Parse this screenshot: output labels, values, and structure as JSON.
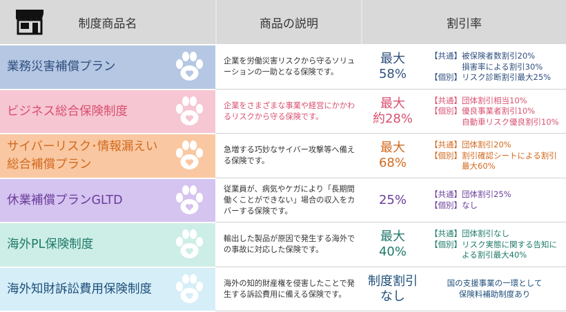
{
  "header": {
    "col_name": "制度商品名",
    "col_desc": "商品の説明",
    "col_discount": "割引率",
    "icon": "shop-icon"
  },
  "rows": [
    {
      "name": "業務災害補償プラン",
      "desc": "企業を労働災害リスクから守るソリューションの一助となる保険です。",
      "rate_line1": "最大",
      "rate_line2": "58%",
      "discount": "【共通】被保険者数割引20%\n　　　　損害率による割引30%\n【個別】リスク診断割引最大25%",
      "color_name_bg": "#b5c7e3",
      "color_text": "#2f4f7f",
      "color_light": "#ffffff"
    },
    {
      "name": "ビジネス総合保険制度",
      "desc": "企業をさまざまな事業や経営にかかわるリスクから守る保険です。",
      "rate_line1": "最大",
      "rate_line2": "約28%",
      "discount": "【共通】団体割引相当10%\n【個別】優良事業者割引10%\n　　　　自動車リスク優良割引10%",
      "color_name_bg": "#f6c6d3",
      "color_text": "#d9506f",
      "color_light": "#ffffff"
    },
    {
      "name": "サイバーリスク･情報漏えい\n総合補償プラン",
      "desc": "急増する巧妙なサイバー攻撃等へ備える保険です。",
      "rate_line1": "最大",
      "rate_line2": "68%",
      "discount": "【共通】団体割引20%\n【個別】割引確認シートによる割引\n　　　　最大60%",
      "color_name_bg": "#f9c8a2",
      "color_text": "#d2691e",
      "color_light": "#ffffff"
    },
    {
      "name": "休業補償プランGLTD",
      "desc": "従業員が、病気やケガにより「長期間働くことができない」場合の収入をカバーする保険です。",
      "rate_line1": "",
      "rate_line2": "25%",
      "discount": "【共通】団体割引25%\n【個別】なし",
      "color_name_bg": "#d5c3f0",
      "color_text": "#6a3d9a",
      "color_light": "#ffffff"
    },
    {
      "name": "海外PL保険制度",
      "desc": "輸出した製品が原因で発生する海外での事故に対応した保険です。",
      "rate_line1": "最大",
      "rate_line2": "40%",
      "discount": "【共通】団体割引なし\n【個別】リスク実態に関する告知に\n　　　　よる割引最大40%",
      "color_name_bg": "#cdeee6",
      "color_text": "#1f7a6a",
      "color_light": "#ffffff"
    },
    {
      "name": "海外知財訴訟費用保険制度",
      "desc": "海外の知的財産権を侵害したことで発生する訴訟費用に備える保険です。",
      "rate_line1": "制度割引",
      "rate_line2": "なし",
      "discount": "国の支援事業の一環として\n保険料補助制度あり",
      "color_name_bg": "#d6eef8",
      "color_text": "#1f4f7a",
      "color_light": "#ffffff"
    }
  ]
}
